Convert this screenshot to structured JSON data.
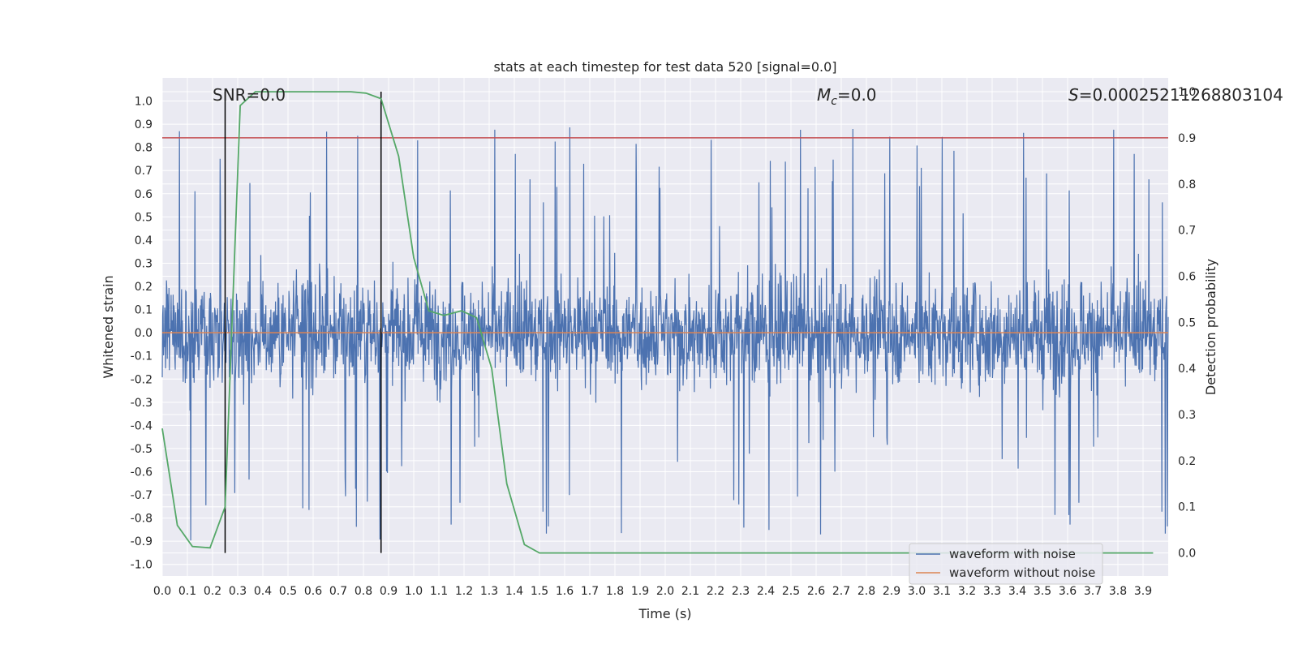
{
  "chart_data": {
    "type": "line",
    "title": "stats at each timestep for test data 520 [signal=0.0]",
    "xlabel": "Time (s)",
    "ylabel": "Whitened strain",
    "y2label": "Detection probability",
    "xlim": [
      0.0,
      4.0
    ],
    "ylim": [
      -1.05,
      1.1
    ],
    "y2lim": [
      -0.05,
      1.03
    ],
    "xticks": [
      "0.0",
      "0.1",
      "0.2",
      "0.3",
      "0.4",
      "0.5",
      "0.6",
      "0.7",
      "0.8",
      "0.9",
      "1.0",
      "1.1",
      "1.2",
      "1.3",
      "1.4",
      "1.5",
      "1.6",
      "1.7",
      "1.8",
      "1.9",
      "2.0",
      "2.1",
      "2.2",
      "2.3",
      "2.4",
      "2.5",
      "2.6",
      "2.7",
      "2.8",
      "2.9",
      "3.0",
      "3.1",
      "3.2",
      "3.3",
      "3.4",
      "3.5",
      "3.6",
      "3.7",
      "3.8",
      "3.9"
    ],
    "yticks": [
      "1.0",
      "0.9",
      "0.8",
      "0.7",
      "0.6",
      "0.5",
      "0.4",
      "0.3",
      "0.2",
      "0.1",
      "0.0",
      "-0.1",
      "-0.2",
      "-0.3",
      "-0.4",
      "-0.5",
      "-0.6",
      "-0.7",
      "-0.8",
      "-0.9",
      "-1.0"
    ],
    "y2ticks": [
      "1.0",
      "0.9",
      "0.8",
      "0.7",
      "0.6",
      "0.5",
      "0.4",
      "0.3",
      "0.2",
      "0.1",
      "0.0"
    ],
    "grid": true,
    "legend_location": "lower-right",
    "annotations": {
      "snr": "SNR=0.0",
      "mc_symbol": "M",
      "mc_sub": "c",
      "mc_value": "=0.0",
      "s_symbol": "S",
      "s_value": "=0.00025211268803104"
    },
    "series": [
      {
        "name": "waveform with noise",
        "color": "#4c72b0",
        "axis": "left",
        "description": "dense whitened noise, roughly within ±0.5 with peaks near ±0.95"
      },
      {
        "name": "waveform without noise",
        "color": "#dd8452",
        "axis": "left",
        "x": [
          0.0,
          4.0
        ],
        "y": [
          0.0,
          0.0
        ]
      },
      {
        "name": "detection probability",
        "color": "#55a868",
        "axis": "right",
        "x": [
          0.0,
          0.06,
          0.12,
          0.19,
          0.25,
          0.31,
          0.37,
          0.44,
          0.5,
          0.56,
          0.62,
          0.69,
          0.75,
          0.81,
          0.87,
          0.94,
          1.0,
          1.06,
          1.12,
          1.19,
          1.25,
          1.31,
          1.37,
          1.44,
          1.5,
          3.94
        ],
        "y": [
          0.27,
          0.06,
          0.014,
          0.011,
          0.1,
          0.97,
          1.0,
          1.0,
          1.0,
          1.0,
          1.0,
          1.0,
          1.0,
          0.997,
          0.985,
          0.86,
          0.64,
          0.525,
          0.515,
          0.525,
          0.51,
          0.4,
          0.15,
          0.018,
          0.0,
          0.0
        ]
      }
    ],
    "hlines": [
      {
        "name": "detection threshold",
        "color": "#c44e52",
        "axis": "right",
        "value": 0.9
      }
    ],
    "vlines": [
      {
        "name": "window start",
        "color": "#000000",
        "x": 0.25,
        "y2_from": 0.0,
        "y2_to": 1.0
      },
      {
        "name": "window end",
        "color": "#000000",
        "x": 0.87,
        "y2_from": 0.0,
        "y2_to": 1.0
      }
    ]
  }
}
